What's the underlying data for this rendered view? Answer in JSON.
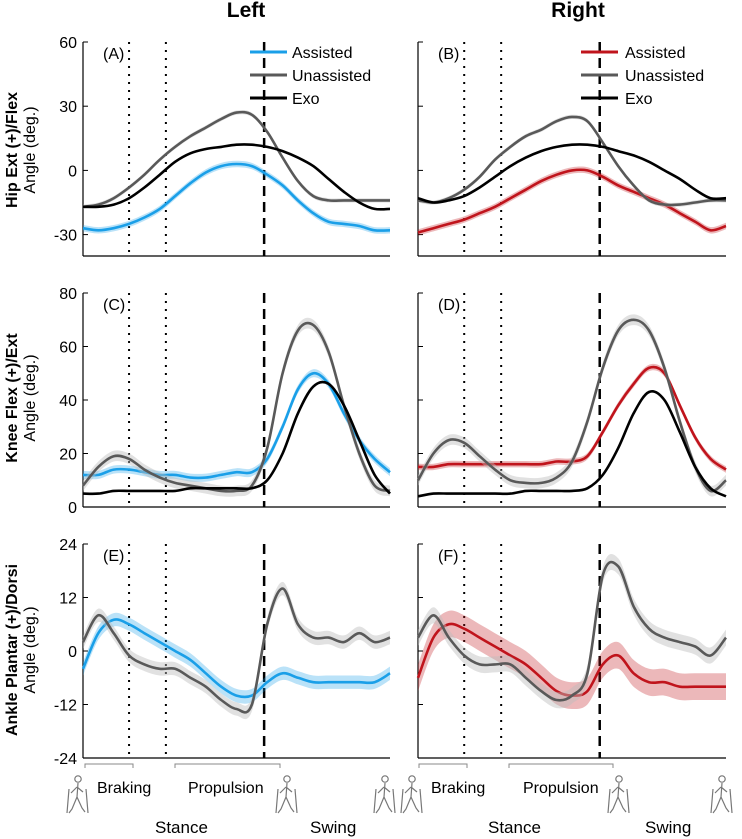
{
  "columns": [
    "Left",
    "Right"
  ],
  "rows": [
    {
      "title": "Hip Ext (+)/Flex",
      "subtitle": "Angle (deg.)"
    },
    {
      "title": "Knee Flex (+)/Ext",
      "subtitle": "Angle (deg.)"
    },
    {
      "title": "Ankle Plantar (+)/Dorsi",
      "subtitle": "Angle (deg.)"
    }
  ],
  "legend": {
    "assisted": "Assisted",
    "unassisted": "Unassisted",
    "exo": "Exo"
  },
  "colors": {
    "assisted_left": "#1a9fe8",
    "assisted_right": "#c0141c",
    "unassisted": "#595959",
    "exo": "#000000"
  },
  "phases": {
    "braking": "Braking",
    "propulsion": "Propulsion",
    "stance": "Stance",
    "swing": "Swing"
  },
  "chart_data": [
    {
      "panel": "(A)",
      "type": "line",
      "side": "Left",
      "ylabel": "Hip Ext (+)/Flex Angle (deg.)",
      "ylim": [
        -40,
        60
      ],
      "yticks": [
        -30,
        0,
        30,
        60
      ],
      "x": [
        0,
        5,
        10,
        15,
        20,
        25,
        30,
        35,
        40,
        45,
        50,
        55,
        60,
        65,
        70,
        75,
        80,
        85,
        90,
        95,
        100
      ],
      "markers": {
        "braking_end": 15,
        "propulsion_start": 27,
        "toe_off": 59
      },
      "series": [
        {
          "name": "Assisted",
          "values": [
            -27,
            -28,
            -27,
            -25,
            -22,
            -18,
            -12,
            -6,
            -1,
            2,
            3,
            2,
            -2,
            -7,
            -14,
            -20,
            -24,
            -25,
            -26,
            -28,
            -28
          ],
          "band": 1.5
        },
        {
          "name": "Unassisted",
          "values": [
            -17,
            -16,
            -13,
            -8,
            -2,
            5,
            11,
            16,
            20,
            24,
            27,
            26,
            18,
            6,
            -5,
            -12,
            -14,
            -14,
            -14,
            -14,
            -14
          ],
          "band": 1.0
        },
        {
          "name": "Exo",
          "values": [
            -17,
            -17,
            -16,
            -13,
            -8,
            -2,
            4,
            8,
            10,
            11,
            12,
            12,
            11,
            9,
            6,
            2,
            -4,
            -10,
            -15,
            -18,
            -18
          ],
          "band": 0
        }
      ]
    },
    {
      "panel": "(B)",
      "type": "line",
      "side": "Right",
      "ylim": [
        -40,
        60
      ],
      "yticks": [
        -30,
        0,
        30,
        60
      ],
      "x": [
        0,
        5,
        10,
        15,
        20,
        25,
        30,
        35,
        40,
        45,
        50,
        55,
        60,
        65,
        70,
        75,
        80,
        85,
        90,
        95,
        100
      ],
      "markers": {
        "braking_end": 15,
        "propulsion_start": 27,
        "toe_off": 59
      },
      "series": [
        {
          "name": "Assisted",
          "values": [
            -29,
            -27,
            -25,
            -23,
            -20,
            -17,
            -13,
            -9,
            -5,
            -2,
            0,
            0,
            -3,
            -7,
            -10,
            -13,
            -16,
            -20,
            -24,
            -28,
            -26
          ],
          "band": 1.5
        },
        {
          "name": "Unassisted",
          "values": [
            -14,
            -15,
            -13,
            -9,
            -3,
            5,
            11,
            16,
            19,
            23,
            25,
            23,
            13,
            2,
            -7,
            -14,
            -16,
            -16,
            -15,
            -14,
            -14
          ],
          "band": 1.0
        },
        {
          "name": "Exo",
          "values": [
            -13,
            -15,
            -14,
            -12,
            -8,
            -3,
            2,
            6,
            9,
            11,
            12,
            12,
            11,
            9,
            7,
            4,
            0,
            -4,
            -9,
            -13,
            -13
          ],
          "band": 0
        }
      ]
    },
    {
      "panel": "(C)",
      "type": "line",
      "side": "Left",
      "ylabel": "Knee Flex (+)/Ext Angle (deg.)",
      "ylim": [
        0,
        80
      ],
      "yticks": [
        0,
        20,
        40,
        60,
        80
      ],
      "x": [
        0,
        5,
        10,
        15,
        20,
        25,
        30,
        35,
        40,
        45,
        50,
        55,
        60,
        65,
        70,
        75,
        80,
        85,
        90,
        95,
        100
      ],
      "markers": {
        "braking_end": 15,
        "propulsion_start": 27,
        "toe_off": 59
      },
      "series": [
        {
          "name": "Assisted",
          "values": [
            12,
            12,
            14,
            14,
            13,
            12,
            12,
            11,
            11,
            12,
            13,
            13,
            18,
            30,
            44,
            50,
            46,
            35,
            25,
            18,
            13
          ],
          "band": 1.5
        },
        {
          "name": "Unassisted",
          "values": [
            8,
            15,
            19,
            18,
            14,
            11,
            9,
            8,
            7,
            6,
            6,
            8,
            22,
            50,
            66,
            68,
            58,
            38,
            20,
            8,
            6
          ],
          "band": 2.0
        },
        {
          "name": "Exo",
          "values": [
            5,
            5,
            6,
            6,
            6,
            6,
            6,
            7,
            7,
            7,
            7,
            7,
            10,
            20,
            35,
            45,
            46,
            38,
            25,
            12,
            5
          ],
          "band": 0
        }
      ]
    },
    {
      "panel": "(D)",
      "type": "line",
      "side": "Right",
      "ylim": [
        0,
        80
      ],
      "yticks": [
        0,
        20,
        40,
        60,
        80
      ],
      "x": [
        0,
        5,
        10,
        15,
        20,
        25,
        30,
        35,
        40,
        45,
        50,
        55,
        60,
        65,
        70,
        75,
        80,
        85,
        90,
        95,
        100
      ],
      "markers": {
        "braking_end": 15,
        "propulsion_start": 27,
        "toe_off": 59
      },
      "series": [
        {
          "name": "Assisted",
          "values": [
            15,
            15,
            16,
            16,
            16,
            16,
            16,
            16,
            16,
            17,
            17,
            19,
            28,
            38,
            46,
            52,
            50,
            38,
            26,
            18,
            14
          ],
          "band": 1.2
        },
        {
          "name": "Unassisted",
          "values": [
            10,
            20,
            25,
            24,
            19,
            14,
            10,
            9,
            9,
            11,
            17,
            32,
            52,
            66,
            70,
            66,
            52,
            32,
            15,
            6,
            10
          ],
          "band": 2.0
        },
        {
          "name": "Exo",
          "values": [
            4,
            5,
            5,
            5,
            5,
            5,
            5,
            6,
            6,
            6,
            6,
            7,
            12,
            22,
            35,
            43,
            40,
            28,
            15,
            7,
            4
          ],
          "band": 0
        }
      ]
    },
    {
      "panel": "(E)",
      "type": "line",
      "side": "Left",
      "ylabel": "Ankle Plantar (+)/Dorsi Angle (deg.)",
      "ylim": [
        -24,
        24
      ],
      "yticks": [
        -24,
        -12,
        0,
        12,
        24
      ],
      "x": [
        0,
        5,
        10,
        15,
        20,
        25,
        30,
        35,
        40,
        45,
        50,
        55,
        60,
        65,
        70,
        75,
        80,
        85,
        90,
        95,
        100
      ],
      "markers": {
        "braking_end": 15,
        "propulsion_start": 27,
        "toe_off": 59
      },
      "series": [
        {
          "name": "Assisted",
          "values": [
            -4,
            4,
            7,
            6,
            4,
            2,
            0,
            -2,
            -5,
            -8,
            -10,
            -10,
            -7,
            -5,
            -6,
            -7,
            -7,
            -7,
            -7,
            -7,
            -5
          ],
          "band": 1.5
        },
        {
          "name": "Unassisted",
          "values": [
            2,
            8,
            4,
            -1,
            -3,
            -4,
            -4,
            -6,
            -8,
            -11,
            -13,
            -12,
            6,
            14,
            6,
            3,
            3,
            2,
            4,
            2,
            3
          ],
          "band": 1.5
        }
      ]
    },
    {
      "panel": "(F)",
      "type": "line",
      "side": "Right",
      "ylim": [
        -24,
        24
      ],
      "yticks": [
        -24,
        -12,
        0,
        12,
        24
      ],
      "x": [
        0,
        5,
        10,
        15,
        20,
        25,
        30,
        35,
        40,
        45,
        50,
        55,
        60,
        65,
        70,
        75,
        80,
        85,
        90,
        95,
        100
      ],
      "markers": {
        "braking_end": 15,
        "propulsion_start": 27,
        "toe_off": 59
      },
      "series": [
        {
          "name": "Assisted",
          "values": [
            -6,
            3,
            6,
            5,
            3,
            1,
            -1,
            -3,
            -6,
            -9,
            -10,
            -9,
            -3,
            -1,
            -5,
            -7,
            -7,
            -8,
            -8,
            -8,
            -8
          ],
          "band": 3.0
        },
        {
          "name": "Unassisted",
          "values": [
            3,
            8,
            3,
            -1,
            -3,
            -3,
            -3,
            -6,
            -9,
            -11,
            -10,
            -5,
            17,
            19,
            10,
            5,
            3,
            2,
            1,
            -1,
            3
          ],
          "band": 1.8
        }
      ]
    }
  ]
}
